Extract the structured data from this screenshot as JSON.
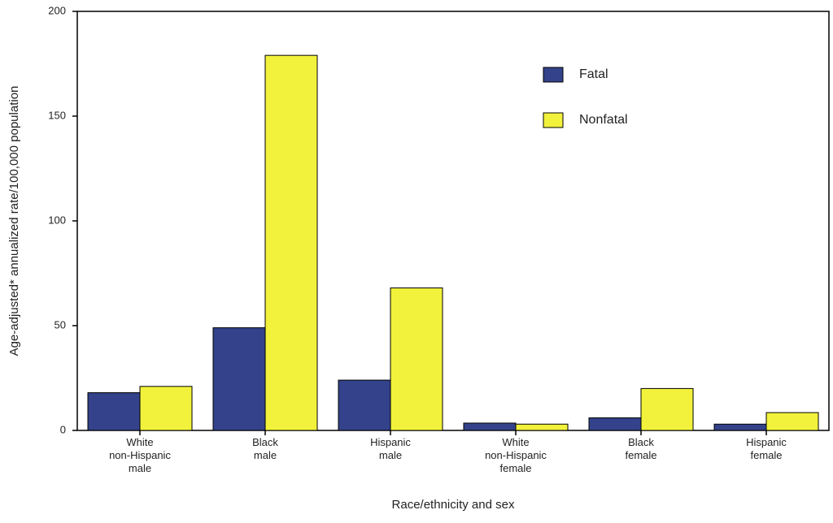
{
  "chart_data": {
    "type": "bar",
    "categories": [
      [
        "White",
        "non-Hispanic",
        "male"
      ],
      [
        "Black",
        "male"
      ],
      [
        "Hispanic",
        "male"
      ],
      [
        "White",
        "non-Hispanic",
        "female"
      ],
      [
        "Black",
        "female"
      ],
      [
        "Hispanic",
        "female"
      ]
    ],
    "series": [
      {
        "name": "Fatal",
        "color": "#33428a",
        "values": [
          18,
          49,
          24,
          3.5,
          6,
          3
        ]
      },
      {
        "name": "Nonfatal",
        "color": "#f2f23c",
        "values": [
          21,
          179,
          68,
          3,
          20,
          8.5
        ]
      }
    ],
    "x_label": "Race/ethnicity and sex",
    "y_label": "Age-adjusted* annualized rate/100,000 population",
    "ylim": [
      0,
      200
    ],
    "yticks": [
      0,
      50,
      100,
      150,
      200
    ]
  }
}
